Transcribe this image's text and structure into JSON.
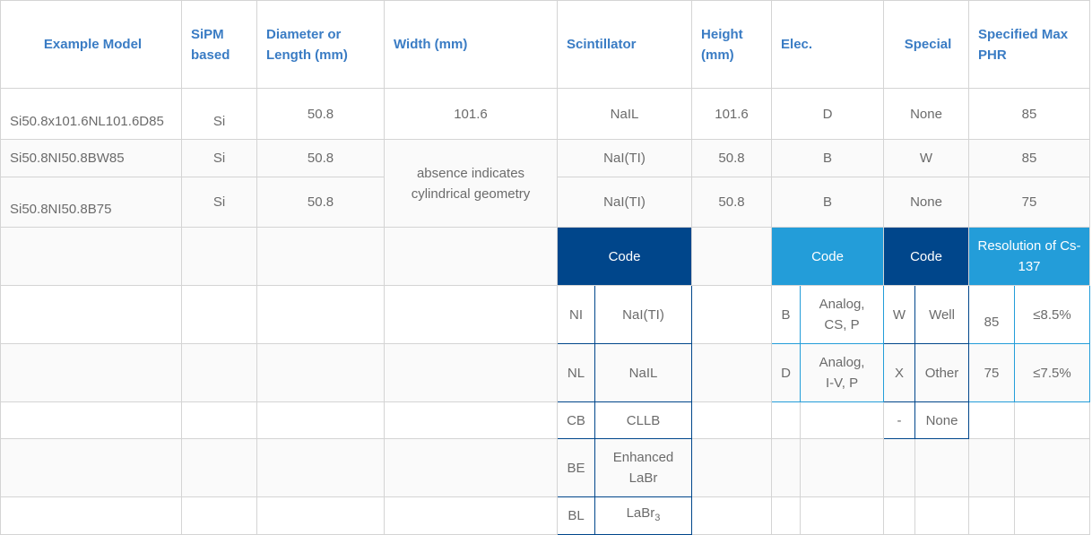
{
  "headers": {
    "model": "Example Model",
    "sipm": "SiPM based",
    "diameter": "Diameter or Length (mm)",
    "width": "Width (mm)",
    "scint": "Scintillator",
    "height": "Height (mm)",
    "elec": "Elec.",
    "special": "Special",
    "phr": "Specified Max PHR"
  },
  "rows": [
    {
      "model": "Si50.8x101.6NL101.6D85",
      "sipm": "Si",
      "diameter": "50.8",
      "width": "101.6",
      "scint": "NaIL",
      "height": "101.6",
      "elec": "D",
      "special": "None",
      "phr": "85"
    },
    {
      "model": "Si50.8NI50.8BW85",
      "sipm": "Si",
      "diameter": "50.8",
      "scint": "NaI(TI)",
      "height": "50.8",
      "elec": "B",
      "special": "W",
      "phr": "85"
    },
    {
      "model": "Si50.8NI50.8B75",
      "sipm": "Si",
      "diameter": "50.8",
      "scint": "NaI(TI)",
      "height": "50.8",
      "elec": "B",
      "special": "None",
      "phr": "75"
    }
  ],
  "width_note": "absence  indicates cylindrical geometry",
  "legend_headers": {
    "scint": "Code",
    "elec": "Code",
    "special": "Code",
    "res": "Resolution of Cs-137"
  },
  "scint_codes": [
    {
      "code": "NI",
      "name": "NaI(TI)"
    },
    {
      "code": "NL",
      "name": "NaIL"
    },
    {
      "code": "CB",
      "name": "CLLB"
    },
    {
      "code": "BE",
      "name": "Enhanced LaBr"
    },
    {
      "code": "BL",
      "name": "LaBr",
      "sub": "3"
    }
  ],
  "elec_codes": [
    {
      "code": "B",
      "name": "Analog, CS, P"
    },
    {
      "code": "D",
      "name": "Analog, I-V, P"
    }
  ],
  "special_codes": [
    {
      "code": "W",
      "name": "Well"
    },
    {
      "code": "X",
      "name": "Other"
    },
    {
      "code": "-",
      "name": "None"
    }
  ],
  "resolution": [
    {
      "phr": "85",
      "res": "≤8.5%"
    },
    {
      "phr": "75",
      "res": "≤7.5%"
    }
  ],
  "colors": {
    "header_text": "#3a7cc4",
    "dark_blue": "#00468b",
    "light_blue": "#239dd9"
  }
}
